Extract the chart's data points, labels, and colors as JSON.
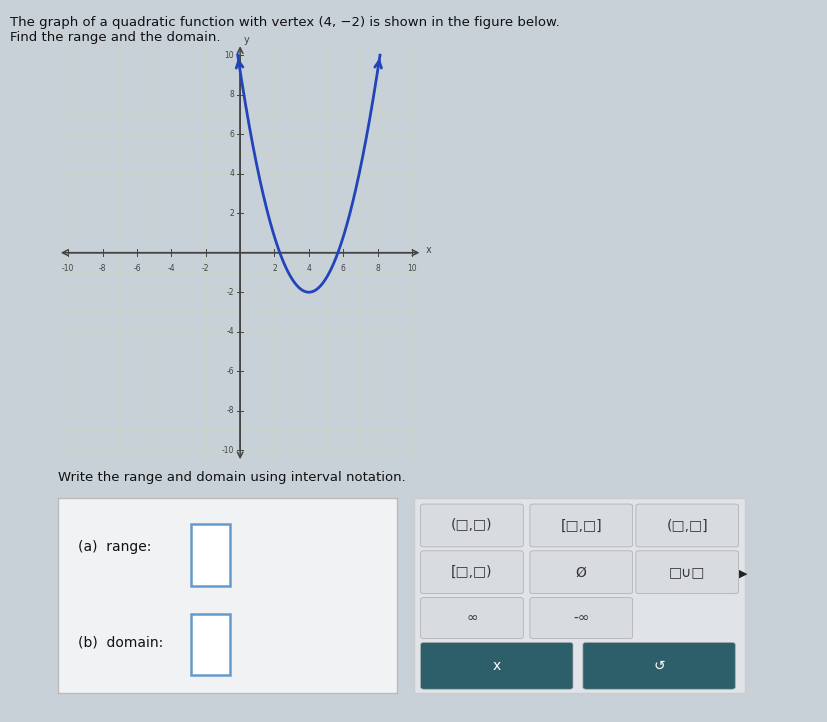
{
  "title_line1": "The graph of a quadratic function with vertex (4, −2) is shown in the figure below.",
  "title_line2": "Find the range and the domain.",
  "vertex": [
    4,
    -2
  ],
  "parabola_a": 0.7,
  "x_range": [
    -10,
    10
  ],
  "y_range": [
    -10,
    10
  ],
  "x_ticks": [
    -10,
    -8,
    -6,
    -4,
    -2,
    0,
    2,
    4,
    6,
    8,
    10
  ],
  "y_ticks": [
    -10,
    -8,
    -6,
    -4,
    -2,
    0,
    2,
    4,
    6,
    8,
    10
  ],
  "curve_color": "#2244BB",
  "curve_linewidth": 2.0,
  "grid_color": "#C8D4C8",
  "grid_linewidth": 0.5,
  "axis_color": "#444444",
  "plot_bg": "#E8EEE8",
  "fig_bg": "#C8D0D8",
  "panel_bg": "#F0F2F4",
  "text_color": "#111111",
  "write_text": "Write the range and domain using interval notation.",
  "label_a": "(a)  range:",
  "label_b": "(b)  domain:",
  "btn_panel_bg": "#E0E4E8",
  "btn_bg": "#D8DCE0",
  "btn_dark": "#2D5F6B",
  "answer_box_border": "#6699CC",
  "cursor_color": "#333333"
}
